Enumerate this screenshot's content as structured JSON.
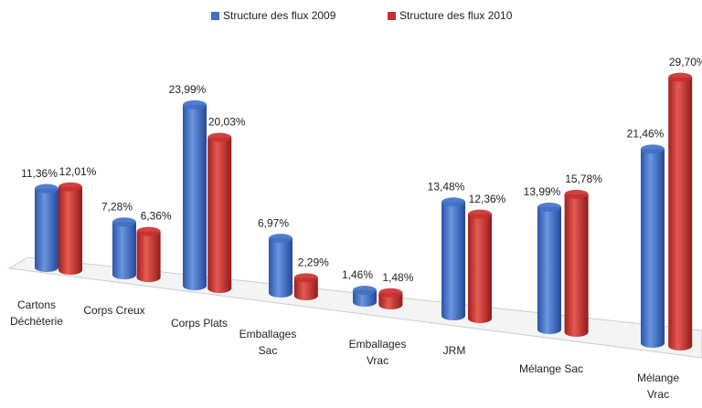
{
  "chart_data": {
    "type": "bar3d",
    "categories": [
      "Cartons\nDéchèterie",
      "Corps Creux",
      "Corps Plats",
      "Emballages\nSac",
      "Emballages\nVrac",
      "JRM",
      "Mélange Sac",
      "Mélange\nVrac"
    ],
    "series": [
      {
        "name": "Structure  des flux 2009",
        "color": "#3f6fc6",
        "values": [
          11.36,
          7.28,
          23.99,
          6.97,
          1.46,
          13.48,
          13.99,
          21.46
        ],
        "value_labels": [
          "11,36%",
          "7,28%",
          "23,99%",
          "6,97%",
          "1,46%",
          "13,48%",
          "13,99%",
          "21,46%"
        ]
      },
      {
        "name": "Structure  des flux 2010",
        "color": "#c8302c",
        "values": [
          12.01,
          6.36,
          20.03,
          2.29,
          1.48,
          12.36,
          15.78,
          29.7
        ],
        "value_labels": [
          "12,01%",
          "6,36%",
          "20,03%",
          "2,29%",
          "1,48%",
          "12,36%",
          "15,78%",
          "29,70%"
        ]
      }
    ]
  }
}
